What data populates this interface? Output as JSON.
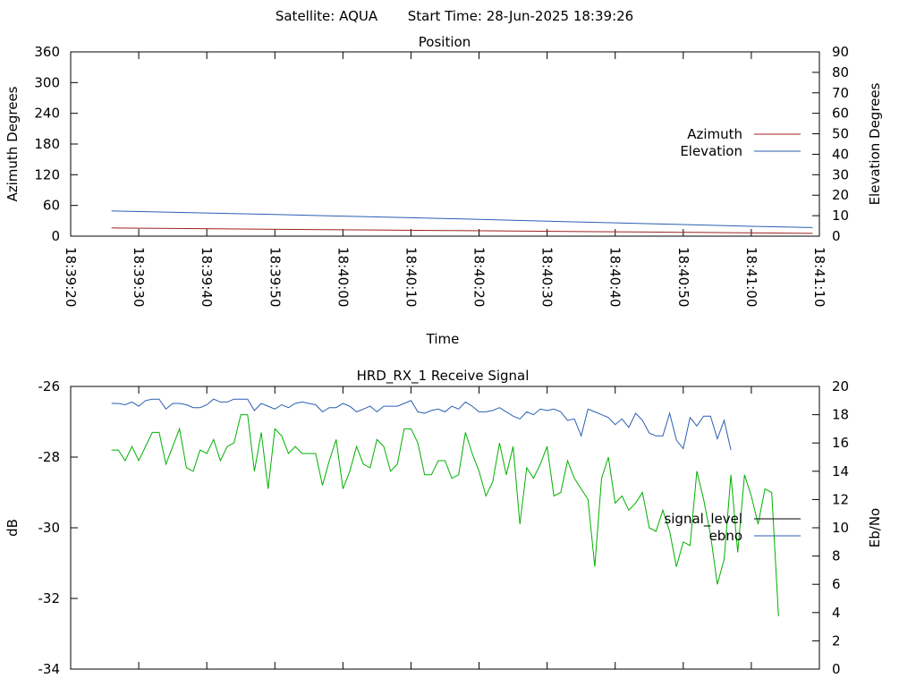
{
  "header": {
    "satellite": "Satellite: AQUA",
    "start_time": "Start Time: 28-Jun-2025 18:39:26"
  },
  "colors": {
    "azimuth": "#a02020",
    "elevation": "#2a5fb0",
    "signal_level": "#00b000",
    "ebno": "#2a5fb0",
    "legend_signal_level": "#000000"
  },
  "chart_data": [
    {
      "type": "line",
      "title": "Position",
      "xlabel": "Time",
      "ylabel": "Azimuth Degrees",
      "y2label": "Elevation Degrees",
      "x_ticks": [
        "18:39:20",
        "18:39:30",
        "18:39:40",
        "18:39:50",
        "18:40:00",
        "18:40:10",
        "18:40:20",
        "18:40:30",
        "18:40:40",
        "18:40:50",
        "18:41:00",
        "18:41:10"
      ],
      "xlim": [
        "18:39:20",
        "18:41:10"
      ],
      "ylim": [
        0,
        360
      ],
      "y_ticks": [
        "0",
        "60",
        "120",
        "180",
        "240",
        "300",
        "360"
      ],
      "y2lim": [
        0,
        90
      ],
      "y2_ticks": [
        "0",
        "10",
        "20",
        "30",
        "40",
        "50",
        "60",
        "70",
        "80",
        "90"
      ],
      "legend_position": "right",
      "series": [
        {
          "name": "Azimuth",
          "axis": "y",
          "points": [
            [
              "18:39:26",
              16
            ],
            [
              "18:39:35",
              15
            ],
            [
              "18:39:45",
              14
            ],
            [
              "18:39:55",
              13
            ],
            [
              "18:40:05",
              12
            ],
            [
              "18:40:15",
              11
            ],
            [
              "18:40:25",
              10
            ],
            [
              "18:40:35",
              9
            ],
            [
              "18:40:45",
              8
            ],
            [
              "18:40:55",
              7
            ],
            [
              "18:41:05",
              6
            ],
            [
              "18:41:09",
              5.5
            ]
          ]
        },
        {
          "name": "Elevation",
          "axis": "y2",
          "points": [
            [
              "18:39:26",
              12.3
            ],
            [
              "18:39:40",
              11.3
            ],
            [
              "18:39:50",
              10.6
            ],
            [
              "18:40:00",
              9.8
            ],
            [
              "18:40:10",
              9.0
            ],
            [
              "18:40:20",
              8.2
            ],
            [
              "18:40:30",
              7.3
            ],
            [
              "18:40:40",
              6.5
            ],
            [
              "18:40:50",
              5.7
            ],
            [
              "18:41:00",
              4.8
            ],
            [
              "18:41:09",
              4.2
            ]
          ]
        }
      ]
    },
    {
      "type": "line",
      "title": "HRD_RX_1 Receive Signal",
      "xlabel": "",
      "ylabel": "dB",
      "y2label": "Eb/No",
      "xlim": [
        "18:39:20",
        "18:41:10"
      ],
      "ylim": [
        -34,
        -26
      ],
      "y_ticks": [
        "-34",
        "-32",
        "-30",
        "-28",
        "-26"
      ],
      "y2lim": [
        0,
        20
      ],
      "y2_ticks": [
        "0",
        "2",
        "4",
        "6",
        "8",
        "10",
        "12",
        "14",
        "16",
        "18",
        "20"
      ],
      "legend_position": "right",
      "series": [
        {
          "name": "signal_level",
          "axis": "y",
          "points": [
            [
              "18:39:26",
              -27.8
            ],
            [
              "18:39:27",
              -27.8
            ],
            [
              "18:39:28",
              -28.1
            ],
            [
              "18:39:29",
              -27.7
            ],
            [
              "18:39:30",
              -28.1
            ],
            [
              "18:39:31",
              -27.7
            ],
            [
              "18:39:32",
              -27.3
            ],
            [
              "18:39:33",
              -27.3
            ],
            [
              "18:39:34",
              -28.2
            ],
            [
              "18:39:35",
              -27.7
            ],
            [
              "18:39:36",
              -27.2
            ],
            [
              "18:39:37",
              -28.3
            ],
            [
              "18:39:38",
              -28.4
            ],
            [
              "18:39:39",
              -27.8
            ],
            [
              "18:39:40",
              -27.9
            ],
            [
              "18:39:41",
              -27.5
            ],
            [
              "18:39:42",
              -28.1
            ],
            [
              "18:39:43",
              -27.7
            ],
            [
              "18:39:44",
              -27.6
            ],
            [
              "18:39:45",
              -26.8
            ],
            [
              "18:39:46",
              -26.8
            ],
            [
              "18:39:47",
              -28.4
            ],
            [
              "18:39:48",
              -27.3
            ],
            [
              "18:39:49",
              -28.9
            ],
            [
              "18:39:50",
              -27.2
            ],
            [
              "18:39:51",
              -27.4
            ],
            [
              "18:39:52",
              -27.9
            ],
            [
              "18:39:53",
              -27.7
            ],
            [
              "18:39:54",
              -27.9
            ],
            [
              "18:39:55",
              -27.9
            ],
            [
              "18:39:56",
              -27.9
            ],
            [
              "18:39:57",
              -28.8
            ],
            [
              "18:39:58",
              -28.1
            ],
            [
              "18:39:59",
              -27.5
            ],
            [
              "18:40:00",
              -28.9
            ],
            [
              "18:40:01",
              -28.4
            ],
            [
              "18:40:02",
              -27.7
            ],
            [
              "18:40:03",
              -28.2
            ],
            [
              "18:40:04",
              -28.3
            ],
            [
              "18:40:05",
              -27.5
            ],
            [
              "18:40:06",
              -27.7
            ],
            [
              "18:40:07",
              -28.4
            ],
            [
              "18:40:08",
              -28.2
            ],
            [
              "18:40:09",
              -27.2
            ],
            [
              "18:40:10",
              -27.2
            ],
            [
              "18:40:11",
              -27.6
            ],
            [
              "18:40:12",
              -28.5
            ],
            [
              "18:40:13",
              -28.5
            ],
            [
              "18:40:14",
              -28.1
            ],
            [
              "18:40:15",
              -28.1
            ],
            [
              "18:40:16",
              -28.6
            ],
            [
              "18:40:17",
              -28.5
            ],
            [
              "18:40:18",
              -27.3
            ],
            [
              "18:40:19",
              -27.9
            ],
            [
              "18:40:20",
              -28.4
            ],
            [
              "18:40:21",
              -29.1
            ],
            [
              "18:40:22",
              -28.7
            ],
            [
              "18:40:23",
              -27.6
            ],
            [
              "18:40:24",
              -28.5
            ],
            [
              "18:40:25",
              -27.7
            ],
            [
              "18:40:26",
              -29.9
            ],
            [
              "18:40:27",
              -28.3
            ],
            [
              "18:40:28",
              -28.6
            ],
            [
              "18:40:29",
              -28.2
            ],
            [
              "18:40:30",
              -27.7
            ],
            [
              "18:40:31",
              -29.1
            ],
            [
              "18:40:32",
              -29.0
            ],
            [
              "18:40:33",
              -28.1
            ],
            [
              "18:40:34",
              -28.6
            ],
            [
              "18:40:35",
              -28.9
            ],
            [
              "18:40:36",
              -29.2
            ],
            [
              "18:40:37",
              -31.1
            ],
            [
              "18:40:38",
              -28.6
            ],
            [
              "18:40:39",
              -28.0
            ],
            [
              "18:40:40",
              -29.3
            ],
            [
              "18:40:41",
              -29.1
            ],
            [
              "18:40:42",
              -29.5
            ],
            [
              "18:40:43",
              -29.3
            ],
            [
              "18:40:44",
              -29.0
            ],
            [
              "18:40:45",
              -30.0
            ],
            [
              "18:40:46",
              -30.1
            ],
            [
              "18:40:47",
              -29.5
            ],
            [
              "18:40:48",
              -30.1
            ],
            [
              "18:40:49",
              -31.1
            ],
            [
              "18:40:50",
              -30.4
            ],
            [
              "18:40:51",
              -30.5
            ],
            [
              "18:40:52",
              -28.4
            ],
            [
              "18:40:53",
              -29.2
            ],
            [
              "18:40:54",
              -30.2
            ],
            [
              "18:40:55",
              -31.6
            ],
            [
              "18:40:56",
              -30.9
            ],
            [
              "18:40:57",
              -28.5
            ],
            [
              "18:40:58",
              -30.7
            ],
            [
              "18:40:59",
              -28.5
            ],
            [
              "18:41:00",
              -29.1
            ],
            [
              "18:41:01",
              -29.9
            ],
            [
              "18:41:02",
              -28.9
            ],
            [
              "18:41:03",
              -29.0
            ],
            [
              "18:41:04",
              -32.5
            ]
          ]
        },
        {
          "name": "ebno",
          "axis": "y2",
          "points": [
            [
              "18:39:26",
              18.8
            ],
            [
              "18:39:27",
              18.8
            ],
            [
              "18:39:28",
              18.7
            ],
            [
              "18:39:29",
              18.9
            ],
            [
              "18:39:30",
              18.6
            ],
            [
              "18:39:31",
              19.0
            ],
            [
              "18:39:32",
              19.1
            ],
            [
              "18:39:33",
              19.1
            ],
            [
              "18:39:34",
              18.4
            ],
            [
              "18:39:35",
              18.8
            ],
            [
              "18:39:36",
              18.8
            ],
            [
              "18:39:37",
              18.7
            ],
            [
              "18:39:38",
              18.5
            ],
            [
              "18:39:39",
              18.5
            ],
            [
              "18:39:40",
              18.7
            ],
            [
              "18:39:41",
              19.1
            ],
            [
              "18:39:42",
              18.9
            ],
            [
              "18:39:43",
              18.9
            ],
            [
              "18:39:44",
              19.1
            ],
            [
              "18:39:45",
              19.1
            ],
            [
              "18:39:46",
              19.1
            ],
            [
              "18:39:47",
              18.3
            ],
            [
              "18:39:48",
              18.8
            ],
            [
              "18:39:49",
              18.6
            ],
            [
              "18:39:50",
              18.4
            ],
            [
              "18:39:51",
              18.7
            ],
            [
              "18:39:52",
              18.5
            ],
            [
              "18:39:53",
              18.8
            ],
            [
              "18:39:54",
              18.9
            ],
            [
              "18:39:55",
              18.8
            ],
            [
              "18:39:56",
              18.7
            ],
            [
              "18:39:57",
              18.2
            ],
            [
              "18:39:58",
              18.5
            ],
            [
              "18:39:59",
              18.5
            ],
            [
              "18:40:00",
              18.8
            ],
            [
              "18:40:01",
              18.6
            ],
            [
              "18:40:02",
              18.2
            ],
            [
              "18:40:03",
              18.4
            ],
            [
              "18:40:04",
              18.6
            ],
            [
              "18:40:05",
              18.2
            ],
            [
              "18:40:06",
              18.6
            ],
            [
              "18:40:07",
              18.6
            ],
            [
              "18:40:08",
              18.6
            ],
            [
              "18:40:09",
              18.8
            ],
            [
              "18:40:10",
              19.0
            ],
            [
              "18:40:11",
              18.2
            ],
            [
              "18:40:12",
              18.1
            ],
            [
              "18:40:13",
              18.3
            ],
            [
              "18:40:14",
              18.4
            ],
            [
              "18:40:15",
              18.2
            ],
            [
              "18:40:16",
              18.6
            ],
            [
              "18:40:17",
              18.4
            ],
            [
              "18:40:18",
              18.9
            ],
            [
              "18:40:19",
              18.6
            ],
            [
              "18:40:20",
              18.2
            ],
            [
              "18:40:21",
              18.2
            ],
            [
              "18:40:22",
              18.3
            ],
            [
              "18:40:23",
              18.5
            ],
            [
              "18:40:24",
              18.2
            ],
            [
              "18:40:25",
              17.9
            ],
            [
              "18:40:26",
              17.7
            ],
            [
              "18:40:27",
              18.2
            ],
            [
              "18:40:28",
              18.0
            ],
            [
              "18:40:29",
              18.4
            ],
            [
              "18:40:30",
              18.3
            ],
            [
              "18:40:31",
              18.4
            ],
            [
              "18:40:32",
              18.2
            ],
            [
              "18:40:33",
              17.6
            ],
            [
              "18:40:34",
              17.7
            ],
            [
              "18:40:35",
              16.5
            ],
            [
              "18:40:36",
              18.4
            ],
            [
              "18:40:37",
              18.2
            ],
            [
              "18:40:38",
              18.0
            ],
            [
              "18:40:39",
              17.8
            ],
            [
              "18:40:40",
              17.3
            ],
            [
              "18:40:41",
              17.7
            ],
            [
              "18:40:42",
              17.1
            ],
            [
              "18:40:43",
              18.1
            ],
            [
              "18:40:44",
              17.6
            ],
            [
              "18:40:45",
              16.7
            ],
            [
              "18:40:46",
              16.5
            ],
            [
              "18:40:47",
              16.5
            ],
            [
              "18:40:48",
              18.1
            ],
            [
              "18:40:49",
              16.2
            ],
            [
              "18:40:50",
              15.6
            ],
            [
              "18:40:51",
              17.8
            ],
            [
              "18:40:52",
              17.2
            ],
            [
              "18:40:53",
              17.9
            ],
            [
              "18:40:54",
              17.9
            ],
            [
              "18:40:55",
              16.3
            ],
            [
              "18:40:56",
              17.6
            ],
            [
              "18:40:57",
              15.5
            ]
          ]
        }
      ]
    }
  ]
}
